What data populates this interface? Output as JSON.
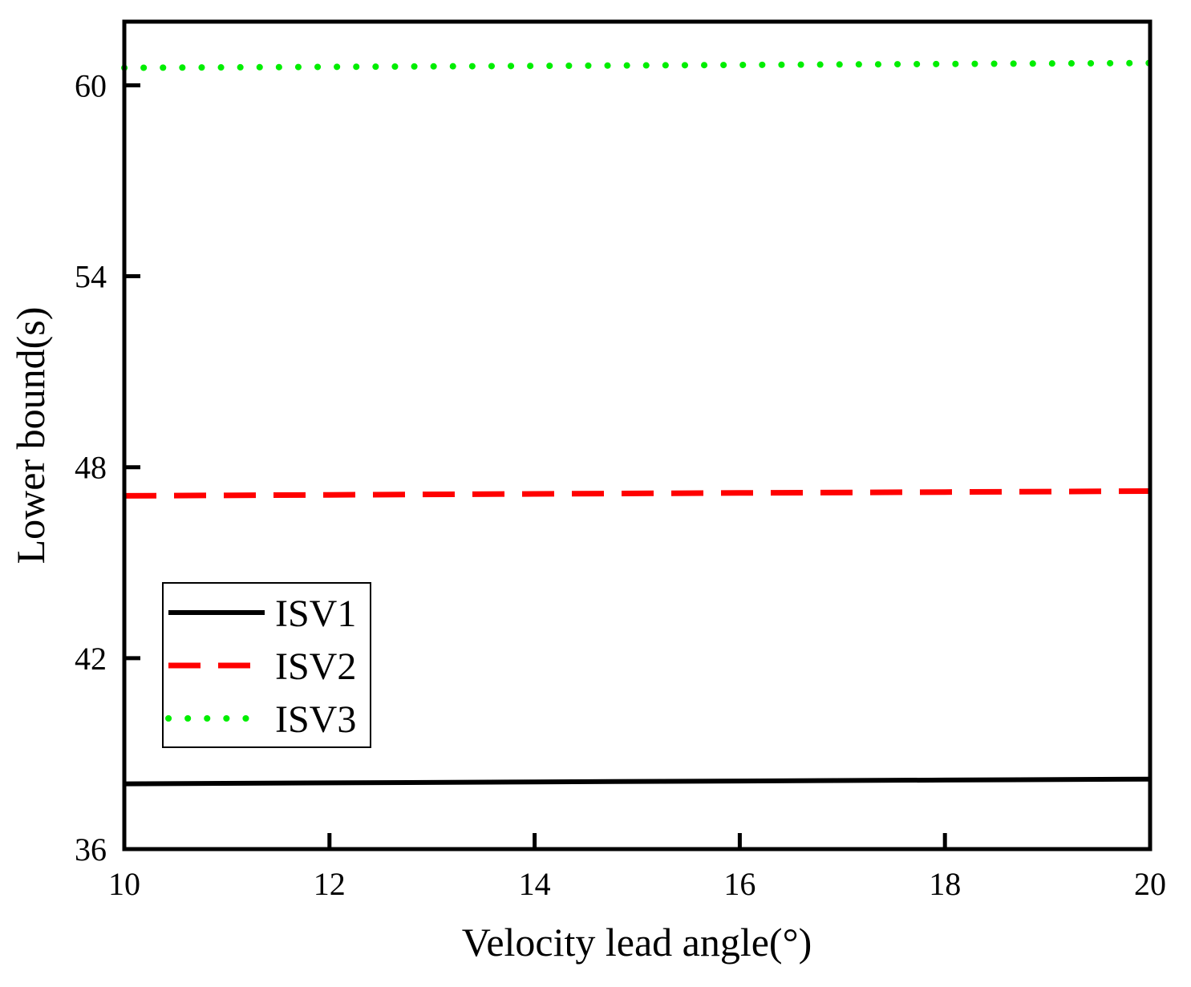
{
  "chart_data": {
    "type": "line",
    "title": "",
    "xlabel": "Velocity lead angle(°)",
    "ylabel": "Lower bound(s)",
    "xlim": [
      10,
      20
    ],
    "ylim": [
      36,
      62
    ],
    "xticks": [
      10,
      12,
      14,
      16,
      18,
      20
    ],
    "yticks": [
      36,
      42,
      48,
      54,
      60
    ],
    "grid": false,
    "legend_position": "lower-left",
    "series": [
      {
        "name": "ISV1",
        "color": "#000000",
        "style": "solid",
        "x": [
          10,
          12,
          14,
          16,
          18,
          20
        ],
        "y": [
          38.05,
          38.08,
          38.11,
          38.14,
          38.17,
          38.2
        ]
      },
      {
        "name": "ISV2",
        "color": "#ff0000",
        "style": "dashed",
        "x": [
          10,
          12,
          14,
          16,
          18,
          20
        ],
        "y": [
          47.1,
          47.13,
          47.16,
          47.19,
          47.22,
          47.25
        ]
      },
      {
        "name": "ISV3",
        "color": "#00ee00",
        "style": "dotted",
        "x": [
          10,
          12,
          14,
          16,
          18,
          20
        ],
        "y": [
          60.55,
          60.58,
          60.61,
          60.64,
          60.67,
          60.7
        ]
      }
    ]
  }
}
